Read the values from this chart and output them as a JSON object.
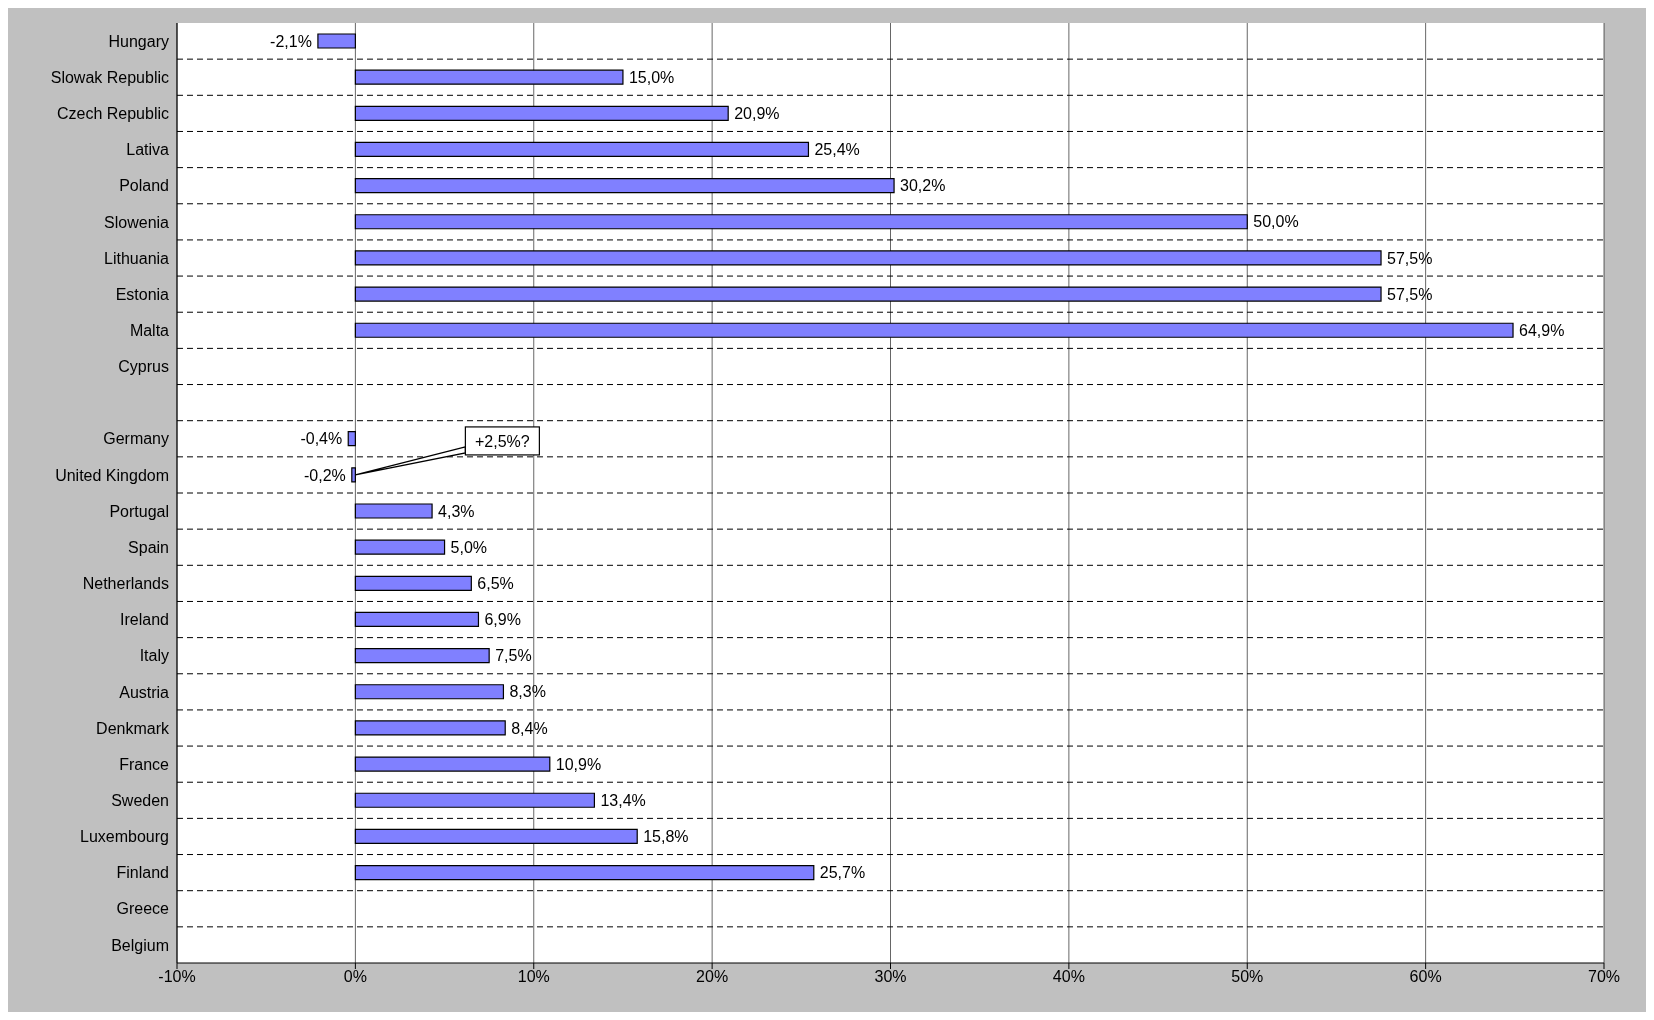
{
  "chart_data": {
    "type": "bar",
    "orientation": "horizontal",
    "categories": [
      "Hungary",
      "Slowak Republic",
      "Czech Republic",
      "Lativa",
      "Poland",
      "Slowenia",
      "Lithuania",
      "Estonia",
      "Malta",
      "Cyprus",
      null,
      "Germany",
      "United Kingdom",
      "Portugal",
      "Spain",
      "Netherlands",
      "Ireland",
      "Italy",
      "Austria",
      "Denkmark",
      "France",
      "Sweden",
      "Luxembourg",
      "Finland",
      "Greece",
      "Belgium"
    ],
    "values": [
      -2.1,
      15.0,
      20.9,
      25.4,
      30.2,
      50.0,
      57.5,
      57.5,
      64.9,
      null,
      null,
      -0.4,
      -0.2,
      4.3,
      5.0,
      6.5,
      6.9,
      7.5,
      8.3,
      8.4,
      10.9,
      13.4,
      15.8,
      25.7,
      null,
      null
    ],
    "value_labels": [
      "-2,1%",
      "15,0%",
      "20,9%",
      "25,4%",
      "30,2%",
      "50,0%",
      "57,5%",
      "57,5%",
      "64,9%",
      null,
      null,
      "-0,4%",
      "-0,2%",
      "4,3%",
      "5,0%",
      "6,5%",
      "6,9%",
      "7,5%",
      "8,3%",
      "8,4%",
      "10,9%",
      "13,4%",
      "15,8%",
      "25,7%",
      null,
      null
    ],
    "color": "#8080ff",
    "xlim": [
      -10,
      70
    ],
    "xticks": [
      {
        "value": -10,
        "label": "-10%"
      },
      {
        "value": 0,
        "label": "0%"
      },
      {
        "value": 10,
        "label": "10%"
      },
      {
        "value": 20,
        "label": "20%"
      },
      {
        "value": 30,
        "label": "30%"
      },
      {
        "value": 40,
        "label": "40%"
      },
      {
        "value": 50,
        "label": "50%"
      },
      {
        "value": 60,
        "label": "60%"
      },
      {
        "value": 70,
        "label": "70%"
      }
    ],
    "grid": true,
    "annotations": [
      {
        "text": "+2,5%?",
        "x": 0,
        "y": "United Kingdom"
      }
    ]
  }
}
